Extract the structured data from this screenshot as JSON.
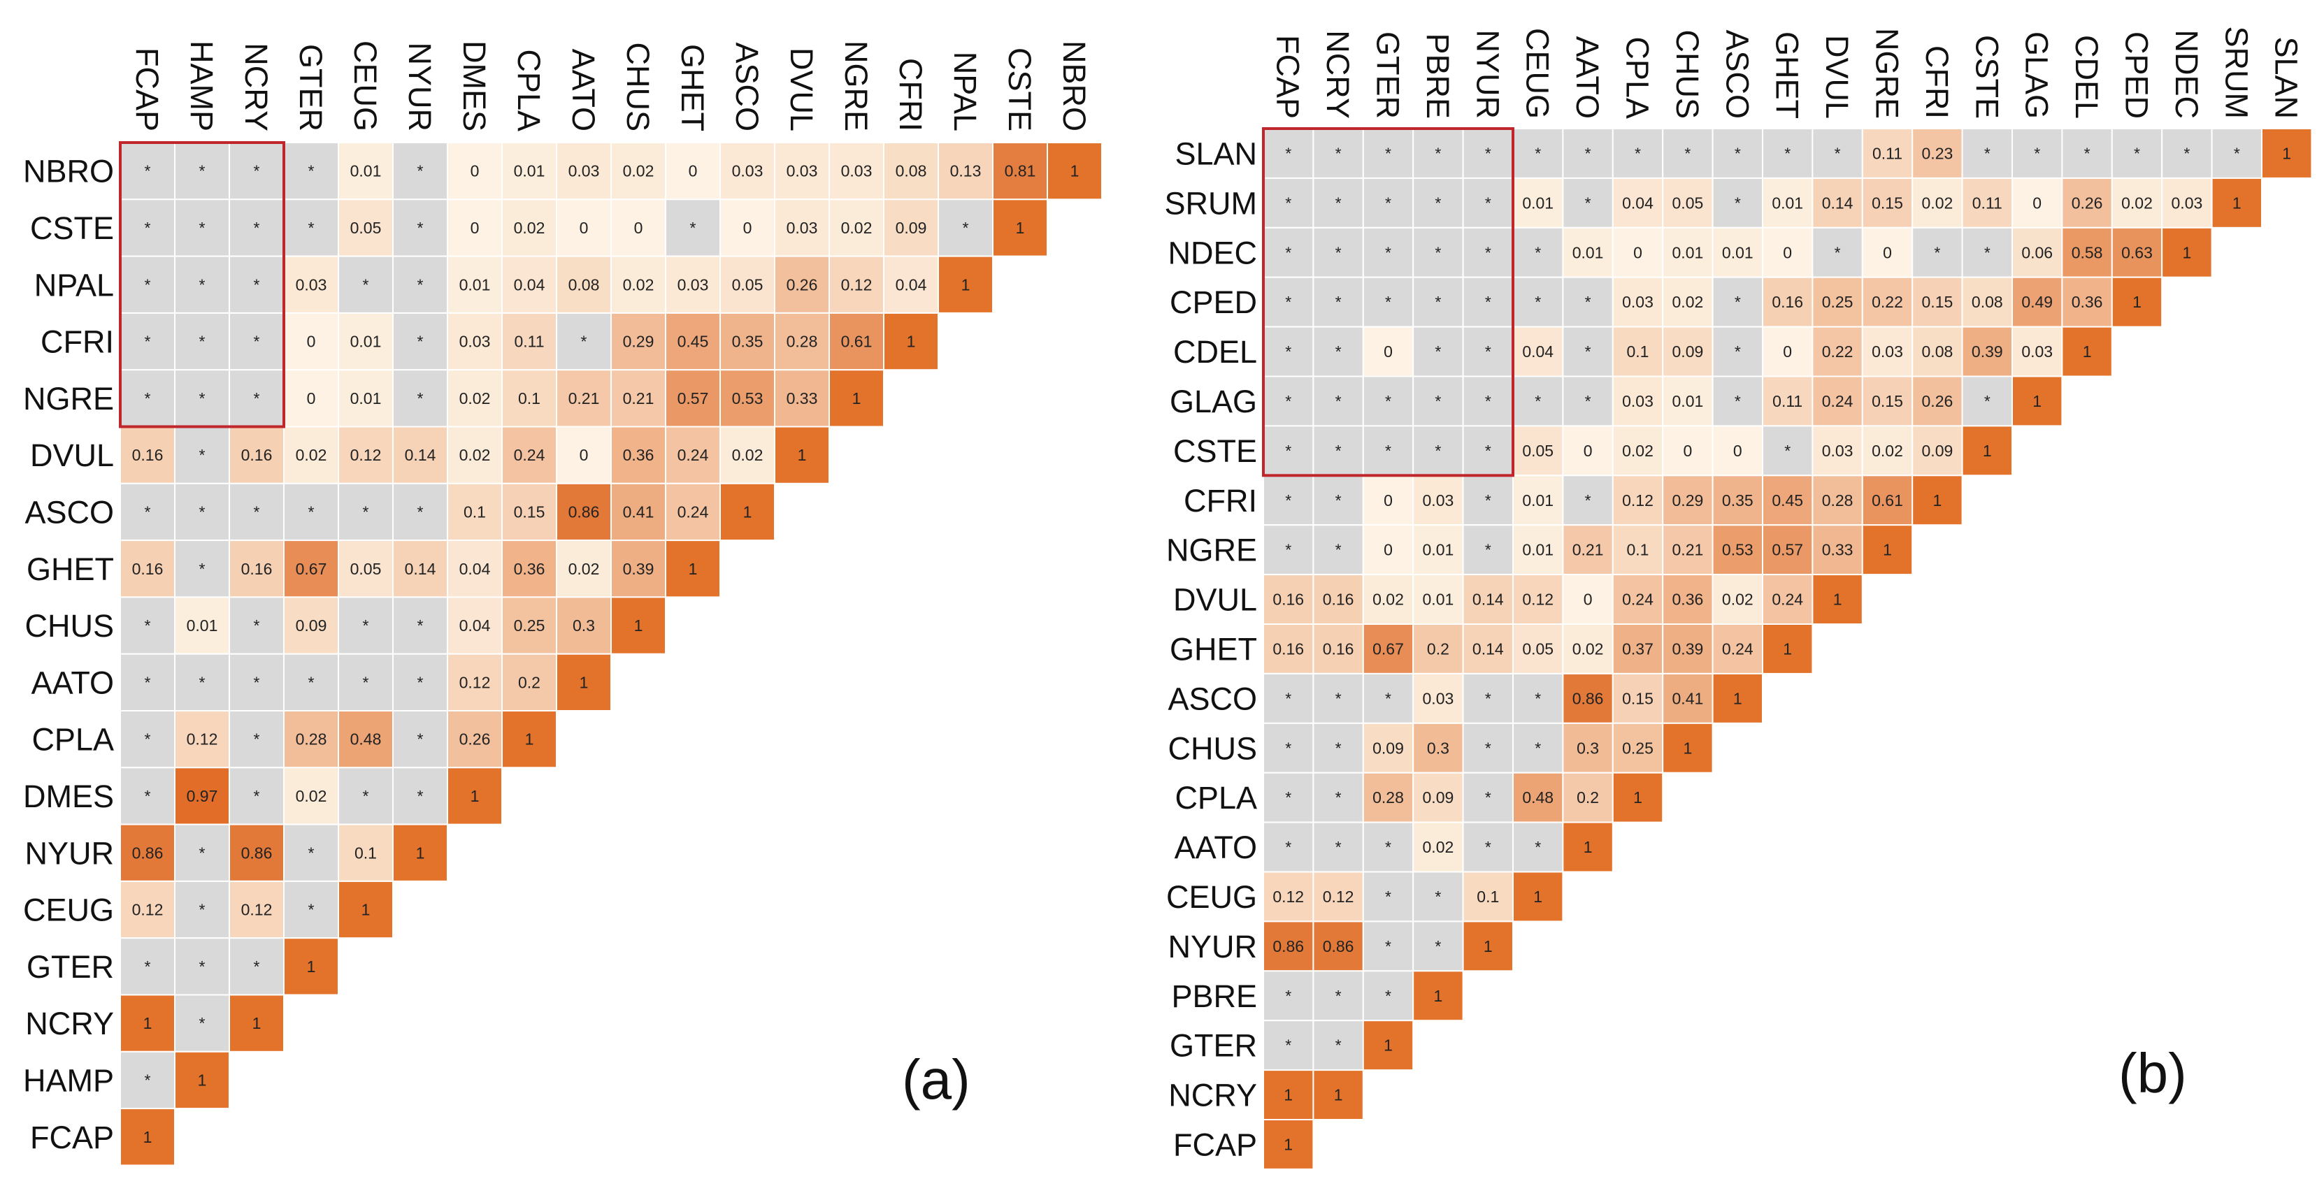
{
  "chart_data": [
    {
      "type": "heatmap",
      "panel_label": "(a)",
      "description": "lower-triangle association matrix; '*' marks non-significant pairs",
      "row_labels": [
        "NBRO",
        "CSTE",
        "NPAL",
        "CFRI",
        "NGRE",
        "DVUL",
        "ASCO",
        "GHET",
        "CHUS",
        "AATO",
        "CPLA",
        "DMES",
        "NYUR",
        "CEUG",
        "GTER",
        "NCRY",
        "HAMP",
        "FCAP"
      ],
      "col_labels": [
        "FCAP",
        "HAMP",
        "NCRY",
        "GTER",
        "CEUG",
        "NYUR",
        "DMES",
        "CPLA",
        "AATO",
        "CHUS",
        "GHET",
        "ASCO",
        "DVUL",
        "NGRE",
        "CFRI",
        "NPAL",
        "CSTE",
        "NBRO"
      ],
      "highlight_box": {
        "rows": [
          "NBRO",
          "CSTE",
          "NPAL",
          "CFRI",
          "NGRE"
        ],
        "cols": [
          "FCAP",
          "HAMP",
          "NCRY"
        ]
      },
      "values": [
        [
          "*",
          "*",
          "*",
          "*",
          "0.01",
          "*",
          "0",
          "0.01",
          "0.03",
          "0.02",
          "0",
          "0.03",
          "0.03",
          "0.03",
          "0.08",
          "0.13",
          "0.81",
          "1"
        ],
        [
          "*",
          "*",
          "*",
          "*",
          "0.05",
          "*",
          "0",
          "0.02",
          "0",
          "0",
          "*",
          "0",
          "0.03",
          "0.02",
          "0.09",
          "*",
          "1"
        ],
        [
          "*",
          "*",
          "*",
          "0.03",
          "*",
          "*",
          "0.01",
          "0.04",
          "0.08",
          "0.02",
          "0.03",
          "0.05",
          "0.26",
          "0.12",
          "0.04",
          "1"
        ],
        [
          "*",
          "*",
          "*",
          "0",
          "0.01",
          "*",
          "0.03",
          "0.11",
          "*",
          "0.29",
          "0.45",
          "0.35",
          "0.28",
          "0.61",
          "1"
        ],
        [
          "*",
          "*",
          "*",
          "0",
          "0.01",
          "*",
          "0.02",
          "0.1",
          "0.21",
          "0.21",
          "0.57",
          "0.53",
          "0.33",
          "1"
        ],
        [
          "0.16",
          "*",
          "0.16",
          "0.02",
          "0.12",
          "0.14",
          "0.02",
          "0.24",
          "0",
          "0.36",
          "0.24",
          "0.02",
          "1"
        ],
        [
          "*",
          "*",
          "*",
          "*",
          "*",
          "*",
          "0.1",
          "0.15",
          "0.86",
          "0.41",
          "0.24",
          "1"
        ],
        [
          "0.16",
          "*",
          "0.16",
          "0.67",
          "0.05",
          "0.14",
          "0.04",
          "0.36",
          "0.02",
          "0.39",
          "1"
        ],
        [
          "*",
          "0.01",
          "*",
          "0.09",
          "*",
          "*",
          "0.04",
          "0.25",
          "0.3",
          "1"
        ],
        [
          "*",
          "*",
          "*",
          "*",
          "*",
          "*",
          "0.12",
          "0.2",
          "1"
        ],
        [
          "*",
          "0.12",
          "*",
          "0.28",
          "0.48",
          "*",
          "0.26",
          "1"
        ],
        [
          "*",
          "0.97",
          "*",
          "0.02",
          "*",
          "*",
          "1"
        ],
        [
          "0.86",
          "*",
          "0.86",
          "*",
          "0.1",
          "1"
        ],
        [
          "0.12",
          "*",
          "0.12",
          "*",
          "1"
        ],
        [
          "*",
          "*",
          "*",
          "1"
        ],
        [
          "1",
          "*",
          "1"
        ],
        [
          "*",
          "1"
        ],
        [
          "1"
        ]
      ]
    },
    {
      "type": "heatmap",
      "panel_label": "(b)",
      "description": "lower-triangle association matrix; '*' marks non-significant pairs",
      "row_labels": [
        "SLAN",
        "SRUM",
        "NDEC",
        "CPED",
        "CDEL",
        "GLAG",
        "CSTE",
        "CFRI",
        "NGRE",
        "DVUL",
        "GHET",
        "ASCO",
        "CHUS",
        "CPLA",
        "AATO",
        "CEUG",
        "NYUR",
        "PBRE",
        "GTER",
        "NCRY",
        "FCAP"
      ],
      "col_labels": [
        "FCAP",
        "NCRY",
        "GTER",
        "PBRE",
        "NYUR",
        "CEUG",
        "AATO",
        "CPLA",
        "CHUS",
        "ASCO",
        "GHET",
        "DVUL",
        "NGRE",
        "CFRI",
        "CSTE",
        "GLAG",
        "CDEL",
        "CPED",
        "NDEC",
        "SRUM",
        "SLAN"
      ],
      "highlight_box": {
        "rows": [
          "SLAN",
          "SRUM",
          "NDEC",
          "CPED",
          "CDEL",
          "GLAG",
          "CSTE"
        ],
        "cols": [
          "FCAP",
          "NCRY",
          "GTER",
          "PBRE",
          "NYUR"
        ]
      },
      "values": [
        [
          "*",
          "*",
          "*",
          "*",
          "*",
          "*",
          "*",
          "*",
          "*",
          "*",
          "*",
          "*",
          "0.11",
          "0.23",
          "*",
          "*",
          "*",
          "*",
          "*",
          "*",
          "1"
        ],
        [
          "*",
          "*",
          "*",
          "*",
          "*",
          "0.01",
          "*",
          "0.04",
          "0.05",
          "*",
          "0.01",
          "0.14",
          "0.15",
          "0.02",
          "0.11",
          "0",
          "0.26",
          "0.02",
          "0.03",
          "1"
        ],
        [
          "*",
          "*",
          "*",
          "*",
          "*",
          "*",
          "0.01",
          "0",
          "0.01",
          "0.01",
          "0",
          "*",
          "0",
          "*",
          "*",
          "0.06",
          "0.58",
          "0.63",
          "1"
        ],
        [
          "*",
          "*",
          "*",
          "*",
          "*",
          "*",
          "*",
          "0.03",
          "0.02",
          "*",
          "0.16",
          "0.25",
          "0.22",
          "0.15",
          "0.08",
          "0.49",
          "0.36",
          "1"
        ],
        [
          "*",
          "*",
          "0",
          "*",
          "*",
          "0.04",
          "*",
          "0.1",
          "0.09",
          "*",
          "0",
          "0.22",
          "0.03",
          "0.08",
          "0.39",
          "0.03",
          "1"
        ],
        [
          "*",
          "*",
          "*",
          "*",
          "*",
          "*",
          "*",
          "0.03",
          "0.01",
          "*",
          "0.11",
          "0.24",
          "0.15",
          "0.26",
          "*",
          "1"
        ],
        [
          "*",
          "*",
          "*",
          "*",
          "*",
          "0.05",
          "0",
          "0.02",
          "0",
          "0",
          "*",
          "0.03",
          "0.02",
          "0.09",
          "1"
        ],
        [
          "*",
          "*",
          "0",
          "0.03",
          "*",
          "0.01",
          "*",
          "0.12",
          "0.29",
          "0.35",
          "0.45",
          "0.28",
          "0.61",
          "1"
        ],
        [
          "*",
          "*",
          "0",
          "0.01",
          "*",
          "0.01",
          "0.21",
          "0.1",
          "0.21",
          "0.53",
          "0.57",
          "0.33",
          "1"
        ],
        [
          "0.16",
          "0.16",
          "0.02",
          "0.01",
          "0.14",
          "0.12",
          "0",
          "0.24",
          "0.36",
          "0.02",
          "0.24",
          "1"
        ],
        [
          "0.16",
          "0.16",
          "0.67",
          "0.2",
          "0.14",
          "0.05",
          "0.02",
          "0.37",
          "0.39",
          "0.24",
          "1"
        ],
        [
          "*",
          "*",
          "*",
          "0.03",
          "*",
          "*",
          "0.86",
          "0.15",
          "0.41",
          "1"
        ],
        [
          "*",
          "*",
          "0.09",
          "0.3",
          "*",
          "*",
          "0.3",
          "0.25",
          "1"
        ],
        [
          "*",
          "*",
          "0.28",
          "0.09",
          "*",
          "0.48",
          "0.2",
          "1"
        ],
        [
          "*",
          "*",
          "*",
          "0.02",
          "*",
          "*",
          "1"
        ],
        [
          "0.12",
          "0.12",
          "*",
          "*",
          "0.1",
          "1"
        ],
        [
          "0.86",
          "0.86",
          "*",
          "*",
          "1"
        ],
        [
          "*",
          "*",
          "*",
          "1"
        ],
        [
          "*",
          "*",
          "1"
        ],
        [
          "1",
          "1"
        ],
        [
          "1"
        ]
      ]
    }
  ],
  "colors": {
    "ns": "#d9d9d9",
    "low": "#fdf2e3",
    "high": "#e06a24",
    "one": "#e3722a",
    "box": "#c0272d",
    "grid": "#ffffff"
  }
}
